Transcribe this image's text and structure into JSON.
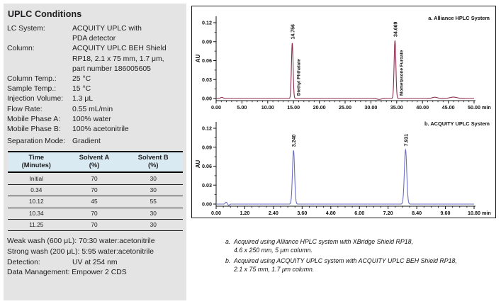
{
  "panel": {
    "title": "UPLC Conditions",
    "rows": [
      {
        "label": "LC System:",
        "value": "ACQUITY UPLC with\nPDA detector"
      },
      {
        "label": "Column:",
        "value": "ACQUITY UPLC BEH Shield\nRP18, 2.1 x 75 mm, 1.7 μm,\npart number 186005605"
      },
      {
        "label": "Column Temp.:",
        "value": "25 °C"
      },
      {
        "label": "Sample Temp.:",
        "value": "15 °C"
      },
      {
        "label": "Injection Volume:",
        "value": "1.3 μL"
      },
      {
        "label": "Flow Rate:",
        "value": "0.55 mL/min"
      },
      {
        "label": "Mobile Phase A:",
        "value": "100% water"
      },
      {
        "label": "Mobile Phase B:",
        "value": "100% acetonitrile"
      },
      {
        "label": "Separation Mode:",
        "value": "Gradient"
      }
    ],
    "gradient_table": {
      "headers": [
        {
          "line1": "Time",
          "line2": "(Minutes)"
        },
        {
          "line1": "Solvent A",
          "line2": "(%)"
        },
        {
          "line1": "Solvent B",
          "line2": "(%)"
        }
      ],
      "rows": [
        [
          "Initial",
          "70",
          "30"
        ],
        [
          "0.34",
          "70",
          "30"
        ],
        [
          "10.12",
          "45",
          "55"
        ],
        [
          "10.34",
          "70",
          "30"
        ],
        [
          "11.25",
          "70",
          "30"
        ]
      ]
    },
    "footer": {
      "weak_wash": "Weak wash (600 μL): 70:30 water:acetonitrile",
      "strong_wash": "Strong wash (200 μL): 5:95 water:acetonitrile",
      "detection_label": "Detection:",
      "detection_value": "UV at 254 nm",
      "data_management": "Data Management: Empower 2 CDS"
    }
  },
  "chart_data": [
    {
      "type": "line",
      "title": "a. Alliance HPLC System",
      "ylabel": "AU",
      "x_unit_label": "min",
      "grid": false,
      "xlim": [
        0,
        50
      ],
      "ylim": [
        0,
        0.13
      ],
      "line_color": "#8d2e4f",
      "yticks": [
        {
          "v": 0.0,
          "label": "0.00"
        },
        {
          "v": 0.03,
          "label": "0.03"
        },
        {
          "v": 0.06,
          "label": "0.06"
        },
        {
          "v": 0.09,
          "label": "0.09"
        },
        {
          "v": 0.12,
          "label": "0.12"
        }
      ],
      "xticks": [
        {
          "v": 0,
          "label": "0.00"
        },
        {
          "v": 5,
          "label": "5.00"
        },
        {
          "v": 10,
          "label": "10.00"
        },
        {
          "v": 15,
          "label": "15.00"
        },
        {
          "v": 20,
          "label": "20.00"
        },
        {
          "v": 25,
          "label": "25.00"
        },
        {
          "v": 30,
          "label": "30.00"
        },
        {
          "v": 35,
          "label": "35.00"
        },
        {
          "v": 40,
          "label": "40.00"
        },
        {
          "v": 45,
          "label": "45.00"
        },
        {
          "v": 50,
          "label": "50.00"
        }
      ],
      "y_minor_step": 0.015,
      "x_minor_step": 1.0,
      "peaks": [
        {
          "rt": 14.756,
          "rt_label": "14.756",
          "compound": "Diethyl Phthalate",
          "height_au": 0.088,
          "sigma": 0.16
        },
        {
          "rt": 34.669,
          "rt_label": "34.669",
          "compound": "Mometasone Furoate",
          "height_au": 0.092,
          "sigma": 0.17
        }
      ],
      "baseline_disturbances": [
        {
          "rt": 1.1,
          "height_au": 0.0018,
          "sigma": 0.25
        },
        {
          "rt": 31.6,
          "height_au": -0.0014,
          "sigma": 0.4
        },
        {
          "rt": 42.4,
          "height_au": 0.002,
          "sigma": 0.5
        },
        {
          "rt": 46.0,
          "height_au": 0.0022,
          "sigma": 0.7
        }
      ]
    },
    {
      "type": "line",
      "title": "b. ACQUITY UPLC System",
      "ylabel": "AU",
      "x_unit_label": "min",
      "grid": false,
      "xlim": [
        0,
        10.8
      ],
      "ylim": [
        0,
        0.13
      ],
      "line_color": "#6b6fc7",
      "yticks": [
        {
          "v": 0.0,
          "label": "0.00"
        },
        {
          "v": 0.03,
          "label": "0.03"
        },
        {
          "v": 0.06,
          "label": "0.06"
        },
        {
          "v": 0.09,
          "label": "0.09"
        },
        {
          "v": 0.12,
          "label": "0.12"
        }
      ],
      "xticks": [
        {
          "v": 0.0,
          "label": "0.00"
        },
        {
          "v": 1.2,
          "label": "1.20"
        },
        {
          "v": 2.4,
          "label": "2.40"
        },
        {
          "v": 3.6,
          "label": "3.60"
        },
        {
          "v": 4.8,
          "label": "4.80"
        },
        {
          "v": 6.0,
          "label": "6.00"
        },
        {
          "v": 7.2,
          "label": "7.20"
        },
        {
          "v": 8.4,
          "label": "8.40"
        },
        {
          "v": 9.6,
          "label": "9.60"
        },
        {
          "v": 10.8,
          "label": "10.80"
        }
      ],
      "y_minor_step": 0.015,
      "x_minor_step": 0.3,
      "peaks": [
        {
          "rt": 3.24,
          "rt_label": "3.240",
          "height_au": 0.085,
          "sigma": 0.045
        },
        {
          "rt": 7.931,
          "rt_label": "7.931",
          "height_au": 0.086,
          "sigma": 0.05
        }
      ],
      "baseline_disturbances": [
        {
          "rt": 0.42,
          "height_au": 0.003,
          "sigma": 0.035
        },
        {
          "rt": 0.53,
          "height_au": -0.002,
          "sigma": 0.03
        }
      ]
    }
  ],
  "footnotes": [
    {
      "marker": "a.",
      "text": "Acquired using Alliance HPLC system with XBridge Shield RP18,\n4.6 x 250 mm, 5 μm column."
    },
    {
      "marker": "b.",
      "text": "Acquired using ACQUITY UPLC system with ACQUITY UPLC BEH Shield RP18,\n2.1 x 75 mm, 1.7 μm column."
    }
  ]
}
